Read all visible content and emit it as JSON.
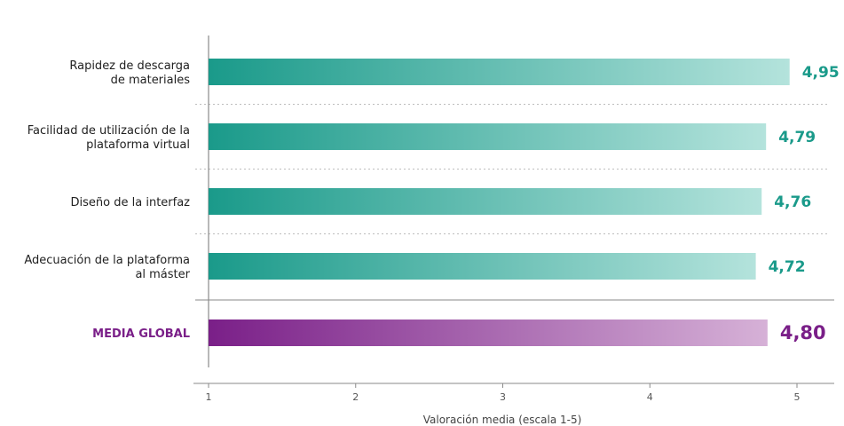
{
  "chart_data": {
    "type": "bar",
    "orientation": "horizontal",
    "categories": [
      [
        "Rapidez de descarga",
        "de materiales"
      ],
      [
        "Facilidad de utilización de la",
        "plataforma virtual"
      ],
      [
        "Diseño de la interfaz"
      ],
      [
        "Adecuación de la plataforma",
        "al máster"
      ]
    ],
    "values": [
      4.95,
      4.79,
      4.76,
      4.72
    ],
    "value_labels": [
      "4,95",
      "4,79",
      "4,76",
      "4,72"
    ],
    "global": {
      "label": "MEDIA GLOBAL",
      "value": 4.8,
      "value_label": "4,80"
    },
    "xlabel": "Valoración media (escala 1-5)",
    "xlim": [
      1,
      5
    ],
    "xticks": [
      1,
      2,
      3,
      4,
      5
    ],
    "grid": "dotted separators between categories",
    "colors": {
      "bar_start": "#1a9a8a",
      "bar_end": "#b4e3dc",
      "value_text": "#1a9a8a",
      "global_start": "#7a1f88",
      "global_end": "#d6b1d7",
      "global_text": "#7a1f88",
      "axis": "#8a8a8a",
      "separator": "#bdbdbd"
    }
  }
}
